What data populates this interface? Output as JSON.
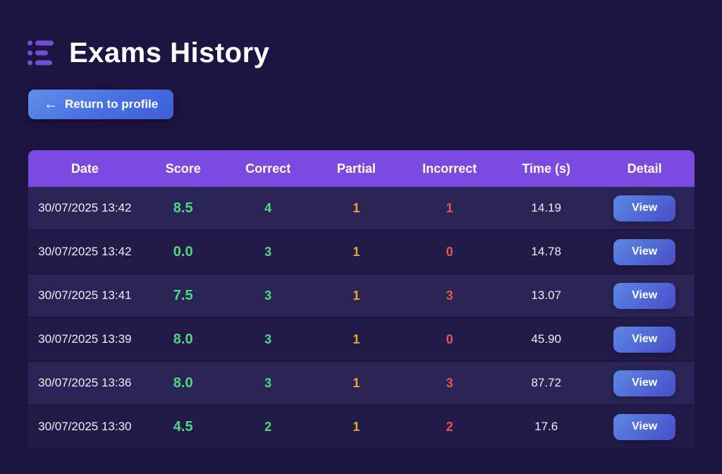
{
  "header": {
    "title": "Exams History",
    "icon_color": "#6f4fd6"
  },
  "return_button": {
    "label": "Return to profile",
    "arrow": "←"
  },
  "table": {
    "columns": [
      "Date",
      "Score",
      "Correct",
      "Partial",
      "Incorrect",
      "Time (s)",
      "Detail"
    ],
    "view_label": "View",
    "colors": {
      "header_bg": "#7b4be1",
      "score": "#4cd97f",
      "correct": "#4cd97f",
      "partial": "#e7a72f",
      "incorrect": "#e6544a",
      "row_light": "#2b2457",
      "row_dark": "#221b49",
      "page_bg": "#1e1441"
    },
    "rows": [
      {
        "date": "30/07/2025 13:42",
        "score": "8.5",
        "correct": "4",
        "partial": "1",
        "incorrect": "1",
        "time": "14.19"
      },
      {
        "date": "30/07/2025 13:42",
        "score": "0.0",
        "correct": "3",
        "partial": "1",
        "incorrect": "0",
        "time": "14.78"
      },
      {
        "date": "30/07/2025 13:41",
        "score": "7.5",
        "correct": "3",
        "partial": "1",
        "incorrect": "3",
        "time": "13.07"
      },
      {
        "date": "30/07/2025 13:39",
        "score": "8.0",
        "correct": "3",
        "partial": "1",
        "incorrect": "0",
        "time": "45.90"
      },
      {
        "date": "30/07/2025 13:36",
        "score": "8.0",
        "correct": "3",
        "partial": "1",
        "incorrect": "3",
        "time": "87.72"
      },
      {
        "date": "30/07/2025 13:30",
        "score": "4.5",
        "correct": "2",
        "partial": "1",
        "incorrect": "2",
        "time": "17.6"
      }
    ]
  }
}
